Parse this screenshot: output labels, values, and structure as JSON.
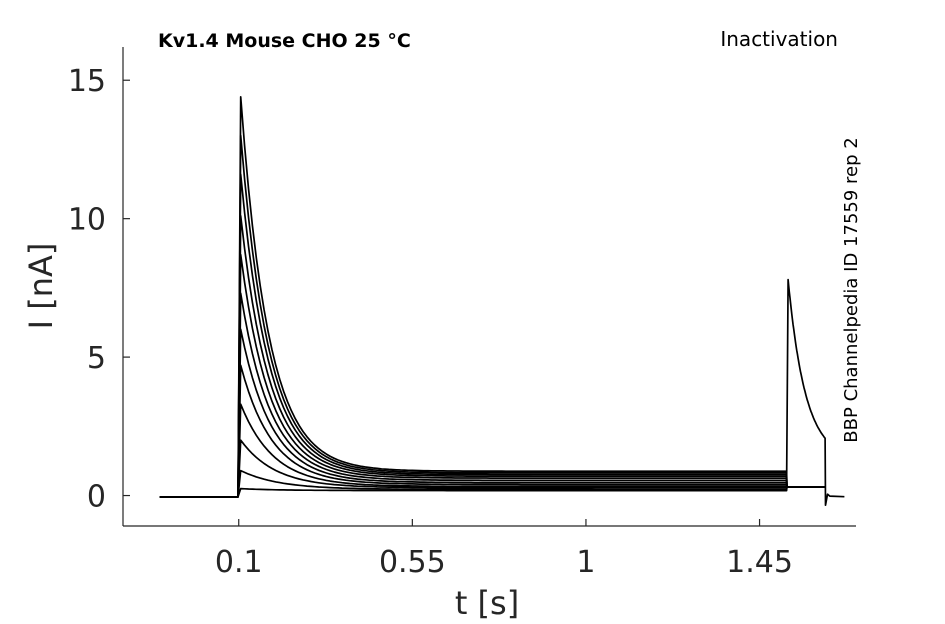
{
  "header": {
    "title_left": "Kv1.4  Mouse  CHO  25 °C",
    "title_right": "Inactivation",
    "side_label": "BBP Channelpedia ID 17559 rep 2"
  },
  "chart_data": {
    "type": "line",
    "title": "Kv1.4  Mouse  CHO  25 °C",
    "xlabel": "t [s]",
    "ylabel": "I [nA]",
    "xlim": [
      -0.2,
      1.7
    ],
    "ylim": [
      -1.1,
      16.2
    ],
    "xticks": [
      0.1,
      0.55,
      1,
      1.45
    ],
    "xtick_labels": [
      "0.1",
      "0.55",
      "1",
      "1.45"
    ],
    "yticks": [
      0,
      5,
      10,
      15
    ],
    "ytick_labels": [
      "0",
      "5",
      "10",
      "15"
    ],
    "grid": false,
    "legend": "none",
    "line_color": "#000000",
    "protocol": {
      "baseline": -0.05,
      "step_on": 0.1,
      "step_off": 1.52,
      "test_off": 1.62,
      "end": 1.67
    },
    "series": [
      {
        "peak": 0.25,
        "steady": 0.18,
        "tau": 0.1
      },
      {
        "peak": 0.9,
        "steady": 0.22,
        "tau": 0.1
      },
      {
        "peak": 2.0,
        "steady": 0.28,
        "tau": 0.09
      },
      {
        "peak": 3.3,
        "steady": 0.33,
        "tau": 0.085
      },
      {
        "peak": 4.7,
        "steady": 0.4,
        "tau": 0.082
      },
      {
        "peak": 6.0,
        "steady": 0.47,
        "tau": 0.08
      },
      {
        "peak": 7.3,
        "steady": 0.55,
        "tau": 0.078
      },
      {
        "peak": 8.7,
        "steady": 0.63,
        "tau": 0.076
      },
      {
        "peak": 10.1,
        "steady": 0.7,
        "tau": 0.075
      },
      {
        "peak": 11.6,
        "steady": 0.76,
        "tau": 0.074
      },
      {
        "peak": 13.0,
        "steady": 0.82,
        "tau": 0.073
      },
      {
        "peak": 14.4,
        "steady": 0.88,
        "tau": 0.072
      }
    ],
    "test_pulse": {
      "peak": 7.8,
      "steady": 1.3,
      "tau": 0.045
    }
  }
}
